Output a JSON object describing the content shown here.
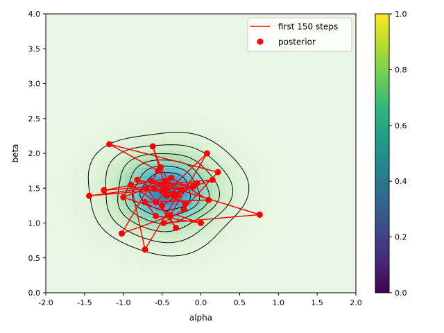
{
  "chart_data": {
    "type": "scatter",
    "title": "",
    "xlabel": "alpha",
    "ylabel": "beta",
    "xlim": [
      -2.0,
      2.0
    ],
    "ylim": [
      0.0,
      4.0
    ],
    "x_ticks": [
      "-2.0",
      "-1.5",
      "-1.0",
      "-0.5",
      "0.0",
      "0.5",
      "1.0",
      "1.5",
      "2.0"
    ],
    "y_ticks": [
      "0.0",
      "0.5",
      "1.0",
      "1.5",
      "2.0",
      "2.5",
      "3.0",
      "3.5",
      "4.0"
    ],
    "grid": false,
    "legend_position": "top-right",
    "density": {
      "kind": "gaussian",
      "center": [
        -0.45,
        1.45
      ],
      "sigma": [
        0.42,
        0.36
      ],
      "contour_levels": [
        0.05,
        0.15,
        0.3,
        0.45,
        0.6,
        0.75
      ]
    },
    "colorbar": {
      "colormap": "viridis",
      "range": [
        0.0,
        1.0
      ],
      "ticks": [
        "0.0",
        "0.2",
        "0.4",
        "0.6",
        "0.8",
        "1.0"
      ]
    },
    "series": [
      {
        "name": "first 150 steps",
        "mark": "line",
        "color": "#ff0000",
        "x": [
          -0.45,
          -0.62,
          -0.52,
          -0.3,
          -0.72,
          -0.9,
          -0.58,
          0.08,
          -0.4,
          -1.02,
          -0.55,
          -1.18,
          0.22,
          -0.22,
          -0.48,
          0.76,
          -0.64,
          -0.1,
          -1.44,
          -0.7,
          -0.32,
          -0.5,
          -0.05,
          -1.25,
          -0.38,
          0.1,
          -0.72,
          -0.58,
          0.0,
          -1.0,
          -0.46,
          -0.25,
          -0.82,
          -0.44,
          0.15,
          -0.52,
          -0.35,
          -0.6,
          -0.2,
          -0.5
        ],
        "y": [
          1.5,
          2.1,
          1.8,
          1.4,
          0.62,
          1.55,
          1.3,
          2.0,
          1.1,
          0.85,
          1.75,
          2.13,
          1.73,
          1.2,
          1.0,
          1.12,
          1.6,
          1.52,
          1.39,
          1.5,
          0.93,
          1.25,
          1.57,
          1.47,
          1.65,
          1.33,
          1.3,
          1.1,
          1.0,
          1.37,
          1.6,
          1.48,
          1.62,
          1.39,
          1.62,
          1.55,
          1.42,
          1.49,
          1.28,
          1.46
        ]
      },
      {
        "name": "posterior",
        "mark": "scatter",
        "color": "#ff0000",
        "x": [
          -0.45,
          -0.62,
          -0.52,
          -0.3,
          -0.72,
          -0.9,
          -0.58,
          0.08,
          -0.4,
          -1.02,
          -0.55,
          -1.18,
          0.22,
          -0.22,
          -0.48,
          0.76,
          -0.64,
          -0.1,
          -1.44,
          -0.7,
          -0.32,
          -0.5,
          -0.05,
          -1.25,
          -0.38,
          0.1,
          -0.72,
          -0.58,
          0.0,
          -1.0,
          -0.46,
          -0.25,
          -0.82,
          -0.44,
          0.15,
          -0.52,
          -0.35,
          -0.6,
          -0.2,
          -0.5
        ],
        "y": [
          1.5,
          2.1,
          1.8,
          1.4,
          0.62,
          1.55,
          1.3,
          2.0,
          1.1,
          0.85,
          1.75,
          2.13,
          1.73,
          1.2,
          1.0,
          1.12,
          1.6,
          1.52,
          1.39,
          1.5,
          0.93,
          1.25,
          1.57,
          1.47,
          1.65,
          1.33,
          1.3,
          1.1,
          1.0,
          1.37,
          1.6,
          1.48,
          1.62,
          1.39,
          1.62,
          1.55,
          1.42,
          1.49,
          1.28,
          1.46
        ]
      }
    ]
  }
}
